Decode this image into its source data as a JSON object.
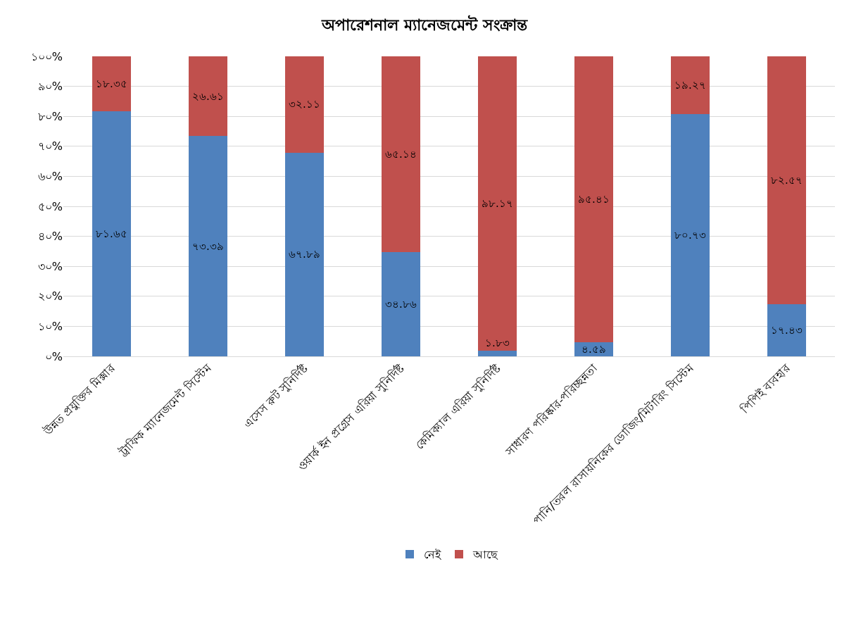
{
  "chart_data": {
    "type": "bar",
    "title": "অপারেশনাল ম্যানেজমেন্ট সংক্রান্ত",
    "stacked": true,
    "categories": [
      "উন্নত প্রযুক্তির মিক্সার",
      "ট্রাফিক ম্যানেজমেন্ট সিস্টেম",
      "এসেস রুট সুনির্দিষ্ট",
      "ওয়ার্ক ইন প্রগ্রেস এরিয়া সুনির্দিষ্ট",
      "কেমিক্যাল এরিয়া সুনির্দিষ্ট",
      "সাধারণ পরিষ্কার-পরিচ্ছন্নতা",
      "পানি/তরল রাসায়নিকের ডোজিং/মিটারিং সিস্টেম",
      "পিপিই ব্যবহার"
    ],
    "series": [
      {
        "name": "নেই",
        "color": "#4f81bd",
        "values": [
          81.65,
          73.39,
          67.89,
          34.86,
          1.83,
          4.59,
          80.73,
          17.43
        ],
        "value_labels": [
          "৮১.৬৫",
          "৭৩.৩৯",
          "৬৭.৮৯",
          "৩৪.৮৬",
          "১.৮৩",
          "৪.৫৯",
          "৮০.৭৩",
          "১৭.৪৩"
        ]
      },
      {
        "name": "আছে",
        "color": "#c0504d",
        "values": [
          18.35,
          26.61,
          32.11,
          65.14,
          98.17,
          95.41,
          19.27,
          82.57
        ],
        "value_labels": [
          "১৮.৩৫",
          "২৬.৬১",
          "৩২.১১",
          "৬৫.১৪",
          "৯৮.১৭",
          "৯৫.৪১",
          "১৯.২৭",
          "৮২.৫৭"
        ]
      }
    ],
    "ylim": [
      0,
      100
    ],
    "yticks": [
      {
        "value": 0,
        "label": "০%"
      },
      {
        "value": 10,
        "label": "১০%"
      },
      {
        "value": 20,
        "label": "২০%"
      },
      {
        "value": 30,
        "label": "৩০%"
      },
      {
        "value": 40,
        "label": "৪০%"
      },
      {
        "value": 50,
        "label": "৫০%"
      },
      {
        "value": 60,
        "label": "৬০%"
      },
      {
        "value": 70,
        "label": "৭০%"
      },
      {
        "value": 80,
        "label": "৮০%"
      },
      {
        "value": 90,
        "label": "৯০%"
      },
      {
        "value": 100,
        "label": "১০০%"
      }
    ],
    "grid": "y",
    "legend": "bottom"
  }
}
